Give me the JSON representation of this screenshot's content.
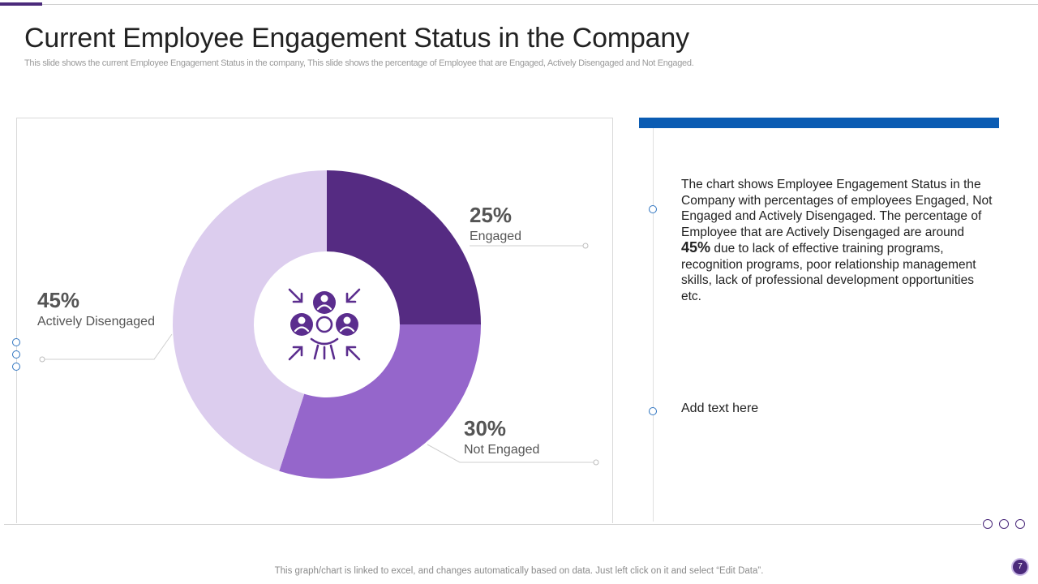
{
  "title": "Current Employee Engagement Status in the Company",
  "subtitle": "This slide shows the current Employee Engagement Status in the company, This slide shows the percentage of Employee that are Engaged, Actively  Disengaged and Not Engaged.",
  "chart_data": {
    "type": "pie",
    "variant": "donut",
    "title": "",
    "categories": [
      "Engaged",
      "Not Engaged",
      "Actively Disengaged"
    ],
    "values": [
      25,
      30,
      45
    ],
    "labels": [
      "25%",
      "30%",
      "45%"
    ],
    "colors": [
      "#552b82",
      "#9566cb",
      "#dccdee"
    ],
    "legend": "none",
    "center_icon": "team-meeting-icon"
  },
  "description": {
    "before": "The chart shows Employee Engagement Status in the Company with percentages of employees Engaged, Not Engaged and Actively Disengaged. The percentage of Employee that are Actively Disengaged are around ",
    "highlight": "45%",
    "after": " due to lack of effective training programs, recognition programs, poor relationship management skills, lack of professional development opportunities etc."
  },
  "add_text": "Add text here",
  "footer_note": "This graph/chart is linked to excel,  and changes automatically based on data. Just left click on it and select “Edit Data”.",
  "page_number": "7",
  "colors": {
    "accent_purple": "#4b2a7b",
    "accent_blue": "#0b5cb3",
    "icon_purple": "#5b2d8e"
  }
}
